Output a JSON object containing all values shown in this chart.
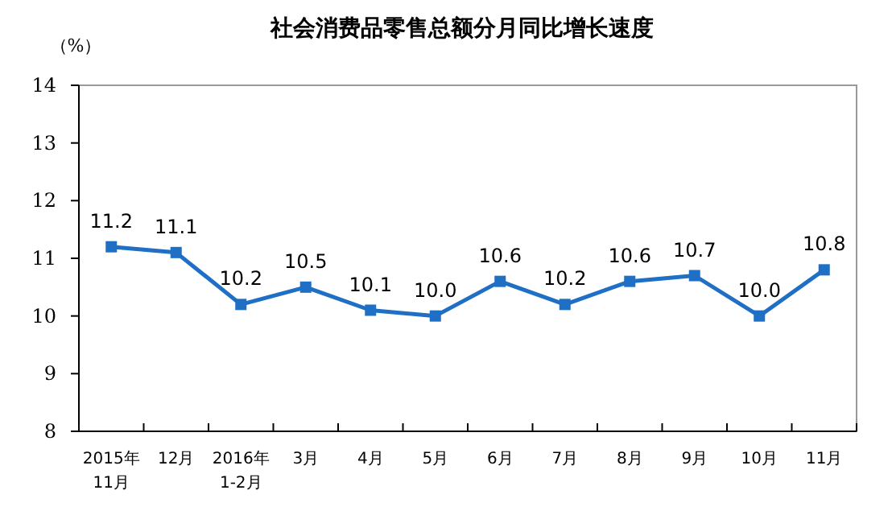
{
  "chart_data": {
    "type": "line",
    "title": "社会消费品零售总额分月同比增长速度",
    "ylabel": "（%）",
    "categories": [
      "2015年\n11月",
      "12月",
      "2016年\n1-2月",
      "3月",
      "4月",
      "5月",
      "6月",
      "7月",
      "8月",
      "9月",
      "10月",
      "11月"
    ],
    "series": [
      {
        "color": "#1f6fc5",
        "values": [
          11.2,
          11.1,
          10.2,
          10.5,
          10.1,
          10.0,
          10.6,
          10.2,
          10.6,
          10.7,
          10.0,
          10.8
        ],
        "value_labels": [
          "11.2",
          "11.1",
          "10.2",
          "10.5",
          "10.1",
          "10.0",
          "10.6",
          "10.2",
          "10.6",
          "10.7",
          "10.0",
          "10.8"
        ]
      }
    ],
    "ylim": [
      8,
      14
    ],
    "yticks": [
      8,
      9,
      10,
      11,
      12,
      13,
      14
    ],
    "marker": "square",
    "line_style": "solid"
  }
}
